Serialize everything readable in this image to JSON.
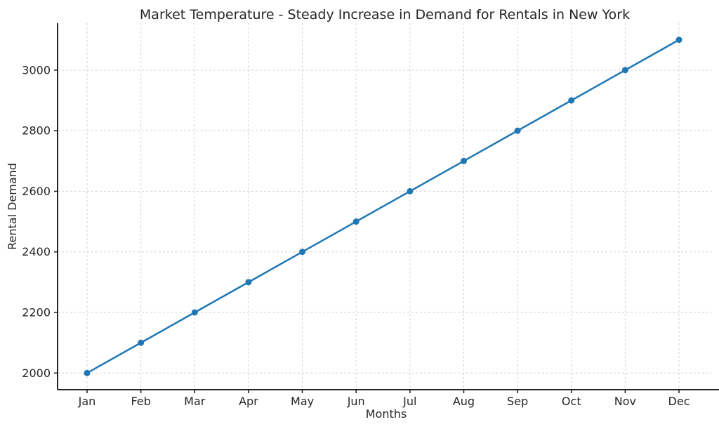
{
  "chart_data": {
    "type": "line",
    "title": "Market Temperature - Steady Increase in Demand for Rentals in New York",
    "xlabel": "Months",
    "ylabel": "Rental Demand",
    "categories": [
      "Jan",
      "Feb",
      "Mar",
      "Apr",
      "May",
      "Jun",
      "Jul",
      "Aug",
      "Sep",
      "Oct",
      "Nov",
      "Dec"
    ],
    "series": [
      {
        "name": "Rental Demand",
        "values": [
          2000,
          2100,
          2200,
          2300,
          2400,
          2500,
          2600,
          2700,
          2800,
          2900,
          3000,
          3100
        ]
      }
    ],
    "yticks": [
      2000,
      2200,
      2400,
      2600,
      2800,
      3000
    ],
    "ylim": [
      1945,
      3155
    ],
    "xlim": [
      -0.55,
      11.55
    ],
    "grid": true,
    "grid_style": "dashed",
    "legend": "none",
    "colors": {
      "line": "#1f77b4",
      "marker": "#1f77b4",
      "spine": "#262626",
      "grid": "#d2d2d2",
      "text": "#262626",
      "background": "#ffffff"
    }
  }
}
